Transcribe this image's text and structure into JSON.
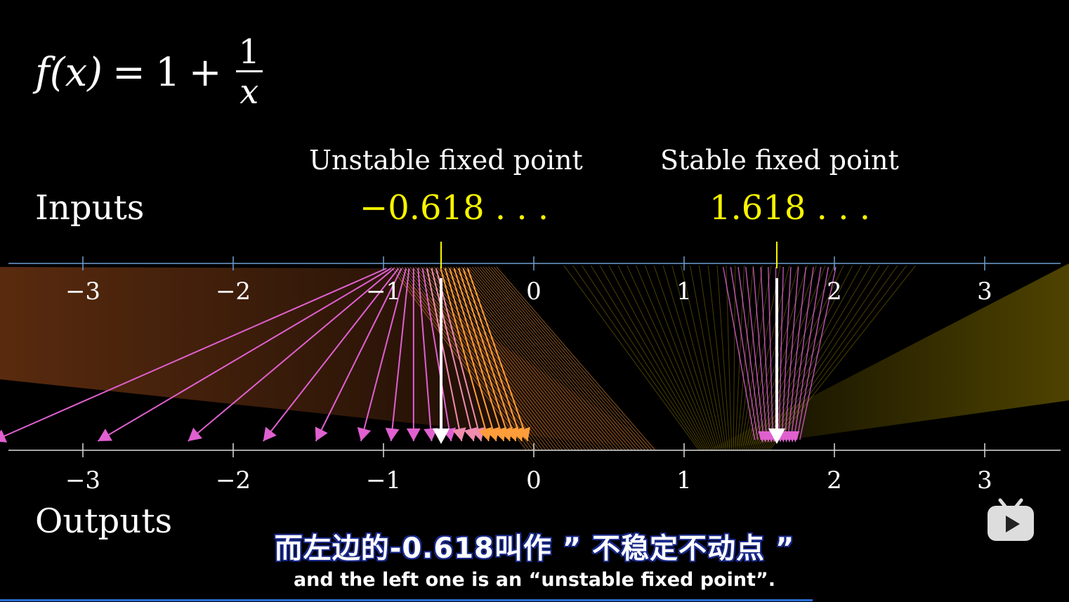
{
  "formula": {
    "lhs": "f(x)",
    "eq": "=",
    "one": "1",
    "plus": "+",
    "num": "1",
    "den": "x"
  },
  "labels": {
    "inputs": "Inputs",
    "outputs": "Outputs",
    "unstable": "Unstable fixed point",
    "stable": "Stable fixed point",
    "unstable_value": "−0.618 . . .",
    "stable_value": "1.618 . . ."
  },
  "axis_ticks": [
    "−3",
    "−2",
    "−1",
    "0",
    "1",
    "2",
    "3"
  ],
  "subtitles": {
    "cn": "而左边的-0.618叫作 ” 不稳定不动点 ”",
    "en": "and the left one is an “unstable fixed point”."
  },
  "colors": {
    "input_axis": "#6f9fd0",
    "output_axis": "#dddddd",
    "fixed_point": "#f7f400",
    "arrow": "#e060d0",
    "warm": "#ff9d3a"
  },
  "icons": {
    "logo": "bilibili-tv-icon"
  },
  "playback": {
    "progress": 0.76
  }
}
